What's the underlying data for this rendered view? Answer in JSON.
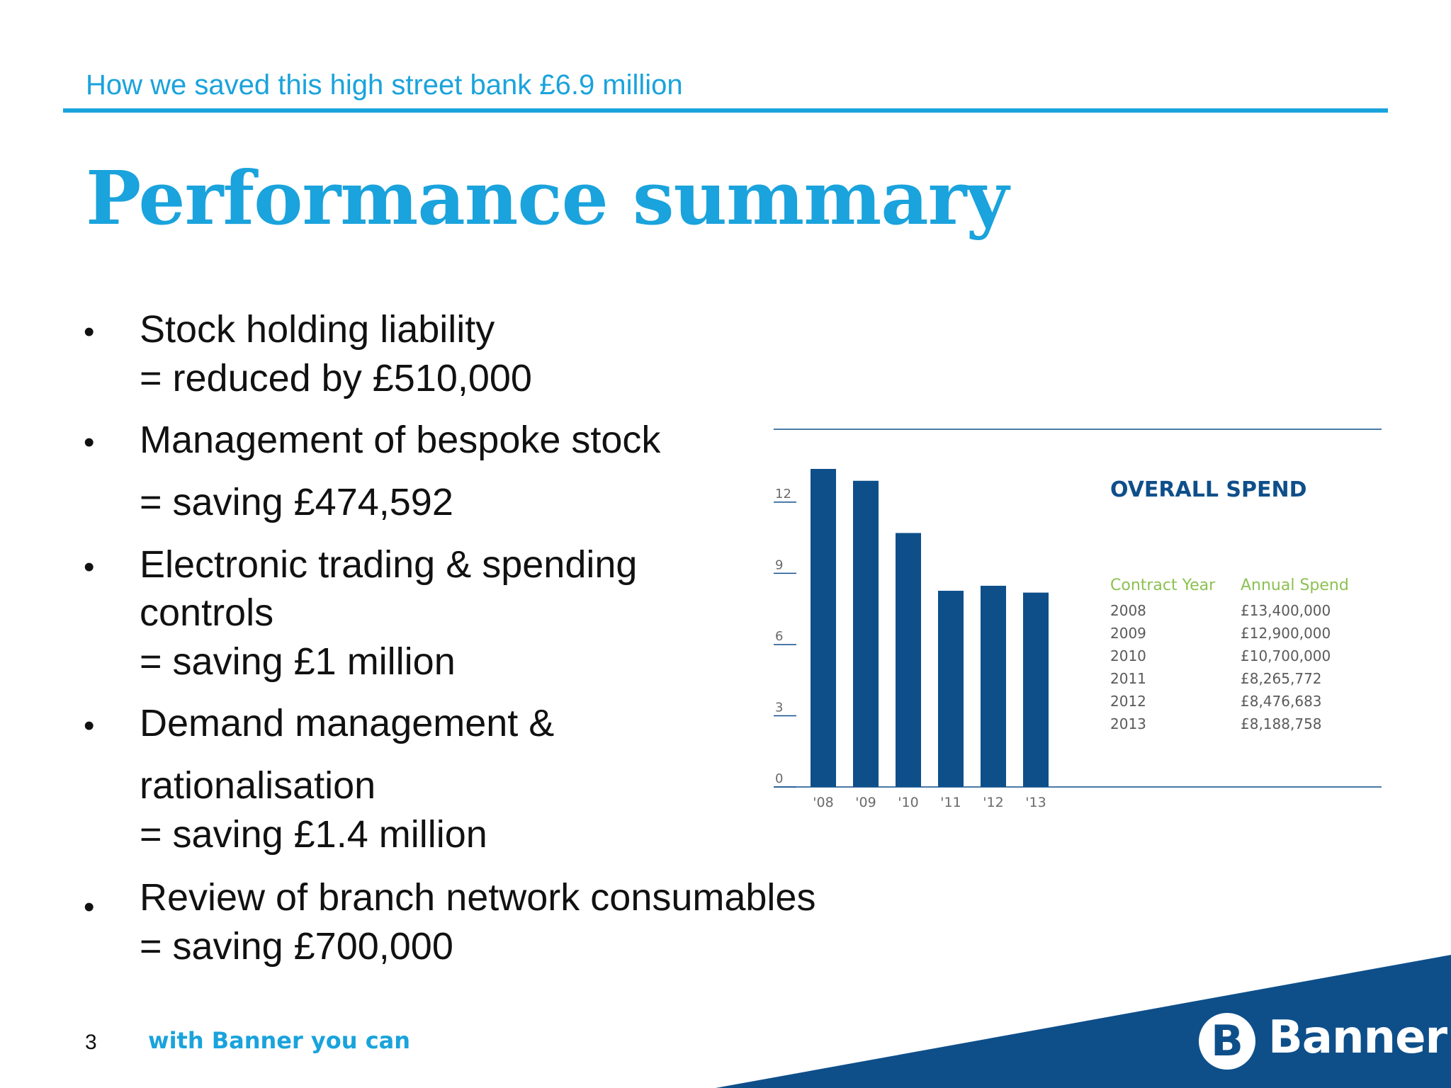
{
  "header": {
    "subtitle": "How we saved this high street bank £6.9 million",
    "title": "Performance summary"
  },
  "bullets": [
    {
      "lines": [
        "Stock holding liability",
        "= reduced by £510,000"
      ]
    },
    {
      "lines": [
        "Management of bespoke stock",
        "= saving £474,592"
      ]
    },
    {
      "lines": [
        "Electronic trading & spending",
        "controls",
        "= saving £1 million"
      ]
    },
    {
      "lines": [
        "Demand management &",
        "rationalisation",
        "= saving £1.4 million"
      ]
    },
    {
      "lines": [
        "Review of branch network consumables",
        "= saving £700,000"
      ]
    }
  ],
  "chart_data": {
    "type": "bar",
    "title": "OVERALL SPEND",
    "categories": [
      "'08",
      "'09",
      "'10",
      "'11",
      "'12",
      "'13"
    ],
    "values": [
      13.4,
      12.9,
      10.7,
      8.265772,
      8.476683,
      8.188758
    ],
    "ylim": [
      0,
      13.4
    ],
    "yticks": [
      "0",
      "3",
      "6",
      "9",
      "12"
    ],
    "bar_color": "#0e4f8a",
    "table": {
      "headers": [
        "Contract Year",
        "Annual Spend"
      ],
      "rows": [
        [
          "2008",
          "£13,400,000"
        ],
        [
          "2009",
          "£12,900,000"
        ],
        [
          "2010",
          "£10,700,000"
        ],
        [
          "2011",
          "£8,265,772"
        ],
        [
          "2012",
          "£8,476,683"
        ],
        [
          "2013",
          "£8,188,758"
        ]
      ]
    }
  },
  "footer": {
    "page_number": "3",
    "tagline": "with Banner you can",
    "logo_letter": "B",
    "logo_text": "Banner"
  },
  "colors": {
    "accent": "#1aa3dc",
    "brand_dark": "#0e4f8a",
    "table_header": "#8cc152"
  }
}
